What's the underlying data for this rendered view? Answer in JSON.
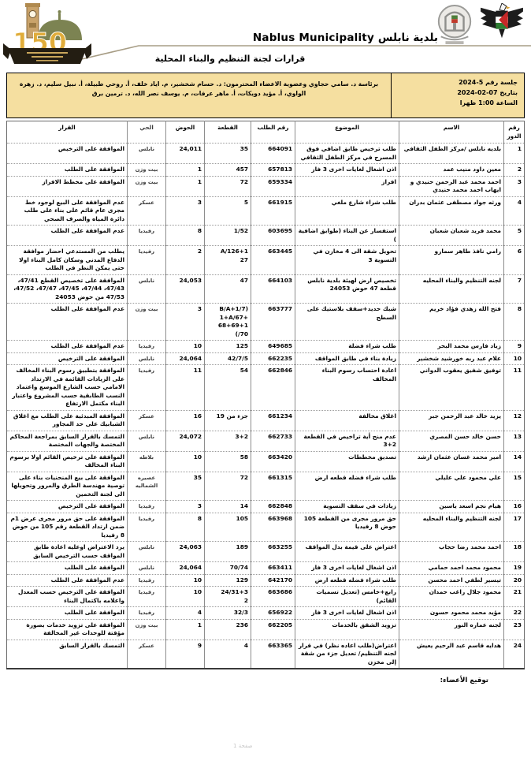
{
  "header": {
    "municipality_en": "Nablus Municipality",
    "municipality_ar": "بلدية نابلس",
    "title": "قرارات لجنة التنظيم والبناء المحلية"
  },
  "session": {
    "number_label": "جلسة رقم 5-2024",
    "date_label": "بتاريخ 07-02-2024",
    "time_label": "الساعة 1:00 ظهرا",
    "attendees": "برئاسة د. سامي حجاوي وعضوية الاعضاء المحترمون: د. حسام شخشير، م. اياد خلف، أ. روحي طبيلة، أ. نبيل سليم، د. زهرة الواوي، أ. مؤيد دويكات، أ. ماهر عرفات، م. يوسف نصر الله، د. ترمين برق"
  },
  "table": {
    "columns": [
      "رقم الدور",
      "الاسم",
      "الموضوع",
      "رقم الطلب",
      "القطعة",
      "الحوض",
      "الحي",
      "القرار"
    ],
    "rows": [
      {
        "num": "1",
        "name": "بلديه نابلس /مركز الطفل الثقافي",
        "subject": "طلب ترخيص طابق اضافي فوق المسرح في مركز الطفل الثقافي",
        "request": "664091",
        "parcel": "35",
        "basin": "24,011",
        "district": "نابلس",
        "decision": "الموافقة على الترخيص"
      },
      {
        "num": "2",
        "name": "معين داود منيب عمد",
        "subject": "اذن اشغال لغايات اخرى 3 فاز",
        "request": "657813",
        "parcel": "457",
        "basin": "1",
        "district": "بيت وزن",
        "decision": "الموافقة على الطلب"
      },
      {
        "num": "3",
        "name": "احمد محمد عبد الرحمن حنيدي و ايهاب احمد محمد حنيدي",
        "subject": "افراز",
        "request": "659334",
        "parcel": "72",
        "basin": "1",
        "district": "بيت وزن",
        "decision": "الموافقة على مخطط الافراز"
      },
      {
        "num": "4",
        "name": "ورثه جواد مصطفى عثمان بدران",
        "subject": "طلب شراء شارع ملغي",
        "request": "661915",
        "parcel": "5",
        "basin": "3",
        "district": "عسكر",
        "decision": "عدم الموافقة على البيع لوجود خط مجرى عام قائم على بناء على طلب دائرة المياه والصرف الصحي"
      },
      {
        "num": "5",
        "name": "محمد فريد شعبان شعبان",
        "subject": "استفسار عن البناء (طوابق اضافية )",
        "request": "603695",
        "parcel": "1/52",
        "basin": "8",
        "district": "رفيديا",
        "decision": "عدم الموافقة على الطلب"
      },
      {
        "num": "6",
        "name": "رامي نافذ طاهر سمارو",
        "subject": "تحويل شقة الى 4 مخازن في التسوية 3",
        "request": "663445",
        "parcel": "A/126+1\n27",
        "basin": "2",
        "district": "رفيديا",
        "decision": "يطلب من المستدعي احضار موافقة الدفاع المدني وسكان كامل البناء اولا حتى يمكن النظر في الطلب"
      },
      {
        "num": "7",
        "name": "لجنه التنظيم والبناء المحليه",
        "subject": "تخصيص ارض لهيئة بلدية نابلس قطعة 47 حوض 24053",
        "request": "664103",
        "parcel": "47",
        "basin": "24,053",
        "district": "نابلس",
        "decision": "الموافقة على تخصيص القطع 47/41، 47/43، 47/44، 47/45، 47/47، 47/52، 47/53 من حوض 24053"
      },
      {
        "num": "8",
        "name": "فتح الله زهدي فؤاد خريم",
        "subject": "شبك حديد+سقف بلاستيك على السطح",
        "request": "663777",
        "parcel": "B/A+1/7)\n1+A/67+\n68+69+1\n(/70",
        "basin": "3",
        "district": "بيت وزن",
        "decision": "عدم الموافقة على الطلب"
      },
      {
        "num": "9",
        "name": "زياد فارس محمد البحر",
        "subject": "طلب شراء فضلة",
        "request": "649685",
        "parcel": "125",
        "basin": "10",
        "district": "رفيديا",
        "decision": "عدم الموافقة على الطلب"
      },
      {
        "num": "10",
        "name": "علام عبد ربه خورشيد شخشير",
        "subject": "زيادة بناء في طابق المواقف",
        "request": "662235",
        "parcel": "42/7/5",
        "basin": "24,064",
        "district": "نابلس",
        "decision": "الموافقة على الترخيص"
      },
      {
        "num": "11",
        "name": "توفيق شفيق يعقوب الدواني",
        "subject": "اعادة احتساب رسوم البناء المخالف",
        "request": "662846",
        "parcel": "54",
        "basin": "11",
        "district": "رفيديا",
        "decision": "الموافقة بتطبيق رسوم البناء المخالف على الزيادات القائمة في الارتداد الامامي حسب الشارع الموسع واعتماد النسب الطابقية حسب المشروع واعتبار البناء مكتمل الارتفاع"
      },
      {
        "num": "12",
        "name": "يزيد خالد عبد الرحمن جبر",
        "subject": "اغلاق مخالفة",
        "request": "661234",
        "parcel": "جزء من 19",
        "basin": "16",
        "district": "عسكر",
        "decision": "الموافقة المبدئية على الطلب مع اغلاق الشبابيك على حد المجاور"
      },
      {
        "num": "13",
        "name": "حسن خالد حسن المصري",
        "subject": "عدم منح أية تراخيص في القطعة 2+3",
        "request": "662733",
        "parcel": "3+2",
        "basin": "24,072",
        "district": "نابلس",
        "decision": "التمسك بالقرار السابق بمراجعة المحاكم المختصة والجهات المختصة"
      },
      {
        "num": "14",
        "name": "امير محمد غسان عثمان ارشد",
        "subject": "تصديق مخططات",
        "request": "663420",
        "parcel": "58",
        "basin": "10",
        "district": "بلاطه",
        "decision": "الموافقة على ترخيص القائم اولا برسوم البناء المخالف"
      },
      {
        "num": "15",
        "name": "علي محمود علي عليلي",
        "subject": "طلب شراء فضله قطعه ارض",
        "request": "661315",
        "parcel": "72",
        "basin": "35",
        "district": "عصيره الشماليه",
        "decision": "الموافقة على بيع المنحنيات بناء على توصية مهندسة الطرق والمرور وتحويلها الى لجنة التخمين"
      },
      {
        "num": "16",
        "name": "هيام نجم اسعد ياسين",
        "subject": "زيادات في سقف التسوية",
        "request": "662848",
        "parcel": "14",
        "basin": "3",
        "district": "رفيديا",
        "decision": "الموافقة على الترخيص"
      },
      {
        "num": "17",
        "name": "لجنه التنظيم والبناء المحليه",
        "subject": "حق مرور مجرى من القطعة 105 حوض 8 رفيديا",
        "request": "663968",
        "parcel": "105",
        "basin": "8",
        "district": "رفيديا",
        "decision": "الموافقة على حق مرور مجرى عرض 1م ضمن ارتداد القطعة رقم 105 من حوض 8 رفيديا"
      },
      {
        "num": "18",
        "name": "احمد محمد رضا حجاب",
        "subject": "اعتراض على قيمة بدل المواقف",
        "request": "663255",
        "parcel": "189",
        "basin": "24,063",
        "district": "نابلس",
        "decision": "يرد الاعتراض اوعليه اعادة طابق المواقف حسب الترخيص السابق"
      },
      {
        "num": "19",
        "name": "محمود محمد احمد حمامي",
        "subject": "اذن اشغال لغايات اخرى 3 فاز",
        "request": "663411",
        "parcel": "70/74",
        "basin": "24,064",
        "district": "نابلس",
        "decision": "الموافقة على الطلب"
      },
      {
        "num": "20",
        "name": "تيسير لطفي احمد محسن",
        "subject": "طلب شراء فضله قطعه ارض",
        "request": "642170",
        "parcel": "129",
        "basin": "10",
        "district": "رفيديا",
        "decision": "عدم الموافقة على الطلب"
      },
      {
        "num": "21",
        "name": "محمود جلال راغب حمدان",
        "subject": "رابع+خامس (تعديل تسميات القائم)",
        "request": "663686",
        "parcel": "24/31+3\n2",
        "basin": "10",
        "district": "رفيديا",
        "decision": "الموافقة على الترخيص حسب المعدل واعلامه باكتمال البناء"
      },
      {
        "num": "22",
        "name": "مؤيد محمد محمود حسون",
        "subject": "اذن اشغال لغايات اخرى 3 فاز",
        "request": "656922",
        "parcel": "32/3",
        "basin": "4",
        "district": "رفيديا",
        "decision": "الموافقة على الطلب"
      },
      {
        "num": "23",
        "name": "لجنه عماره النور",
        "subject": "تزويد الشقق بالخدمات",
        "request": "662205",
        "parcel": "236",
        "basin": "1",
        "district": "بيت وزن",
        "decision": "الموافقة على تزويد خدمات بصورة مؤقتة للوحدات غير المخالفة"
      },
      {
        "num": "24",
        "name": "هدايه قاسم عبد الرحيم يعيش",
        "subject": "اعتراض(طلب اعاده نظر) في قرار لجنه التنظيم/ تعديل جزء من شقة إلى مخزن",
        "request": "663365",
        "parcel": "4",
        "basin": "9",
        "district": "عسكر",
        "decision": "التمسك بالقرار السابق"
      }
    ]
  },
  "footer": {
    "sign_label": "توقيع الأعضاء:",
    "page_label": "صفحة 1"
  }
}
